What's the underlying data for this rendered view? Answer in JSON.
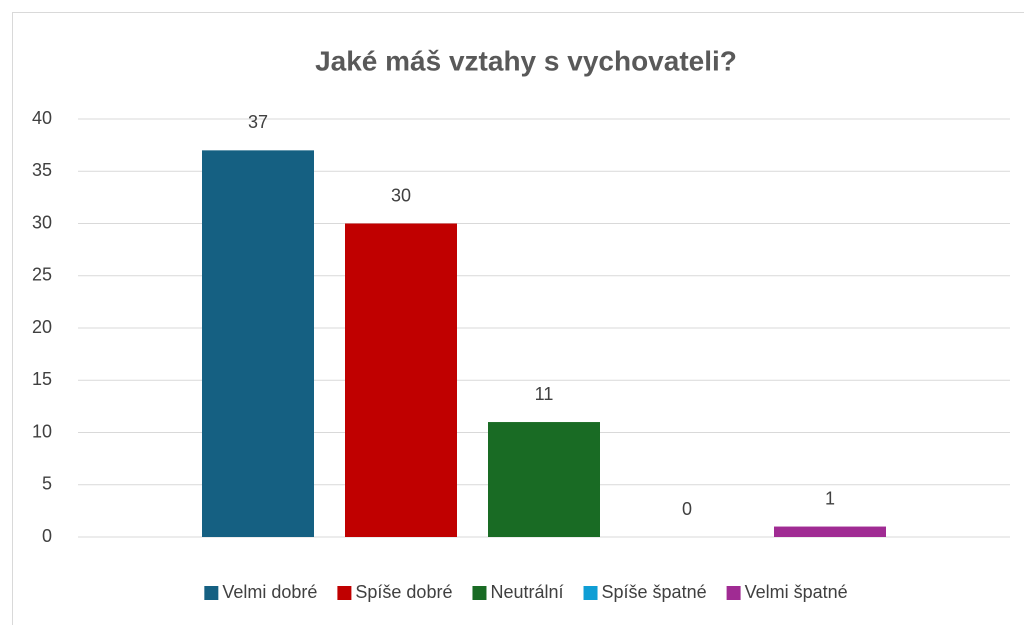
{
  "chart_data": {
    "type": "bar",
    "title": "Jaké máš vztahy s vychovateli?",
    "categories": [
      null
    ],
    "series": [
      {
        "name": "Velmi dobré",
        "color": "#156082",
        "values": [
          37
        ]
      },
      {
        "name": "Spíše dobré",
        "color": "#c00000",
        "values": [
          30
        ]
      },
      {
        "name": "Neutrální",
        "color": "#196b24",
        "values": [
          11
        ]
      },
      {
        "name": "Spíše špatné",
        "color": "#0f9ed5",
        "values": [
          0
        ]
      },
      {
        "name": "Velmi špatné",
        "color": "#a02b93",
        "values": [
          1
        ]
      }
    ],
    "ylim": [
      0,
      40
    ],
    "yticks": [
      0,
      5,
      10,
      15,
      20,
      25,
      30,
      35,
      40
    ],
    "grid": true,
    "legend": "bottom"
  }
}
